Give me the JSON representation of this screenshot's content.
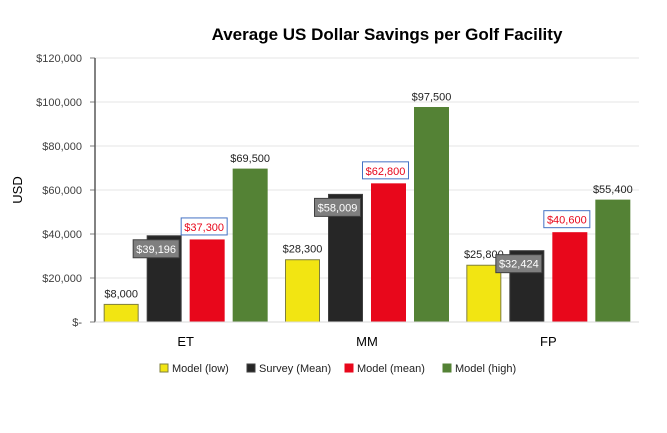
{
  "chart_data": {
    "type": "bar",
    "title": "Average US Dollar Savings per Golf Facility",
    "xlabel": "",
    "ylabel": "USD",
    "ylim": [
      0,
      120000
    ],
    "yticks": [
      0,
      20000,
      40000,
      60000,
      80000,
      100000,
      120000
    ],
    "ytick_labels": [
      "$-",
      "$20,000",
      "$40,000",
      "$60,000",
      "$80,000",
      "$100,000",
      "$120,000"
    ],
    "grid": true,
    "legend_position": "bottom",
    "categories": [
      "ET",
      "MM",
      "FP"
    ],
    "series": [
      {
        "name": "Model (low)",
        "color": "#F2E512",
        "border": "#7F7F3F",
        "values": [
          8000,
          28300,
          25800
        ],
        "labels": [
          "$8,000",
          "$28,300",
          "$25,800"
        ],
        "label_style": "plain"
      },
      {
        "name": "Survey (Mean)",
        "color": "#262626",
        "border": "#404040",
        "values": [
          39196,
          58009,
          32424
        ],
        "labels": [
          "$39,196",
          "$58,009",
          "$32,424"
        ],
        "label_style": "gray-box"
      },
      {
        "name": "Model (mean)",
        "color": "#E8071B",
        "border": "#E8071B",
        "values": [
          37300,
          62800,
          40600
        ],
        "labels": [
          "$37,300",
          "$62,800",
          "$40,600"
        ],
        "label_style": "blue-outline"
      },
      {
        "name": "Model (high)",
        "color": "#548235",
        "border": "#548235",
        "values": [
          69500,
          97500,
          55400
        ],
        "labels": [
          "$69,500",
          "$97,500",
          "$55,400"
        ],
        "label_style": "plain"
      }
    ]
  }
}
